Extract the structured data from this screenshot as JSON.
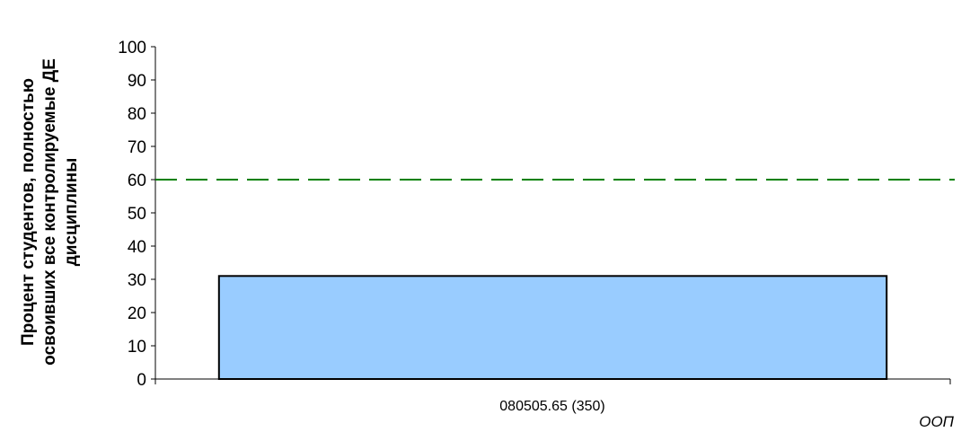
{
  "chart_data": {
    "type": "bar",
    "categories": [
      "080505.65 (350)"
    ],
    "series": [
      {
        "values": [
          31
        ]
      }
    ],
    "ylim": [
      0,
      100
    ],
    "yticks": [
      0,
      10,
      20,
      30,
      40,
      50,
      60,
      70,
      80,
      90,
      100
    ],
    "ylabel_lines": [
      "Процент студентов, полностью",
      "освоивших все контролируемые ДЕ",
      "дисциплины"
    ],
    "xlabel": "ООП",
    "reference_line": {
      "value": 60,
      "style": "dashed"
    },
    "grid": false,
    "legend": "none",
    "colors": {
      "bar_fill": "#99ccff",
      "bar_stroke": "#000000",
      "reference_line": "#008000",
      "axis": "#000000"
    }
  }
}
